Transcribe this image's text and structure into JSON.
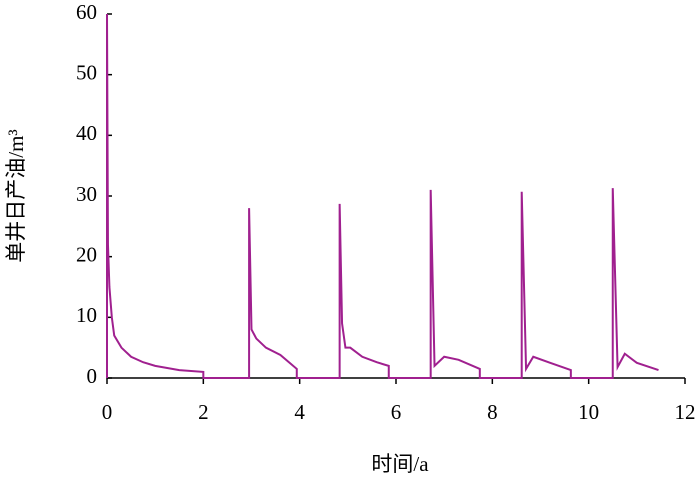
{
  "chart_data": {
    "type": "line",
    "x_label": "时间/a",
    "y_label": "单井日产油/m³",
    "x": [
      0,
      0,
      0.02,
      0.05,
      0.1,
      0.15,
      0.3,
      0.5,
      0.75,
      1,
      1.5,
      2,
      2,
      2.95,
      2.95,
      3,
      3.1,
      3.3,
      3.6,
      3.94,
      3.94,
      4.83,
      4.83,
      4.88,
      4.95,
      5.05,
      5.3,
      5.6,
      5.85,
      5.85,
      6.72,
      6.72,
      6.8,
      7,
      7.3,
      7.74,
      7.74,
      8.61,
      8.61,
      8.7,
      8.85,
      9.2,
      9.63,
      9.63,
      10.5,
      10.5,
      10.6,
      10.75,
      11,
      11.45
    ],
    "values": [
      0,
      60,
      22,
      15,
      10,
      7,
      5,
      3.5,
      2.6,
      2,
      1.3,
      1,
      0,
      0,
      28,
      8,
      6.5,
      5,
      3.8,
      1.5,
      0,
      0,
      28.7,
      9,
      5,
      5,
      3.5,
      2.6,
      2,
      0,
      0,
      31,
      2,
      3.5,
      3,
      1.5,
      0,
      0,
      30.7,
      1.5,
      3.5,
      2.5,
      1.3,
      0,
      0,
      31.3,
      1.8,
      4,
      2.5,
      1.3
    ],
    "color": "#a0208f",
    "xlim": [
      0,
      12
    ],
    "xticks": [
      0,
      2,
      4,
      6,
      8,
      10,
      12
    ],
    "ylim": [
      0,
      60
    ],
    "yticks": [
      0,
      10,
      20,
      30,
      40,
      50,
      60
    ]
  }
}
